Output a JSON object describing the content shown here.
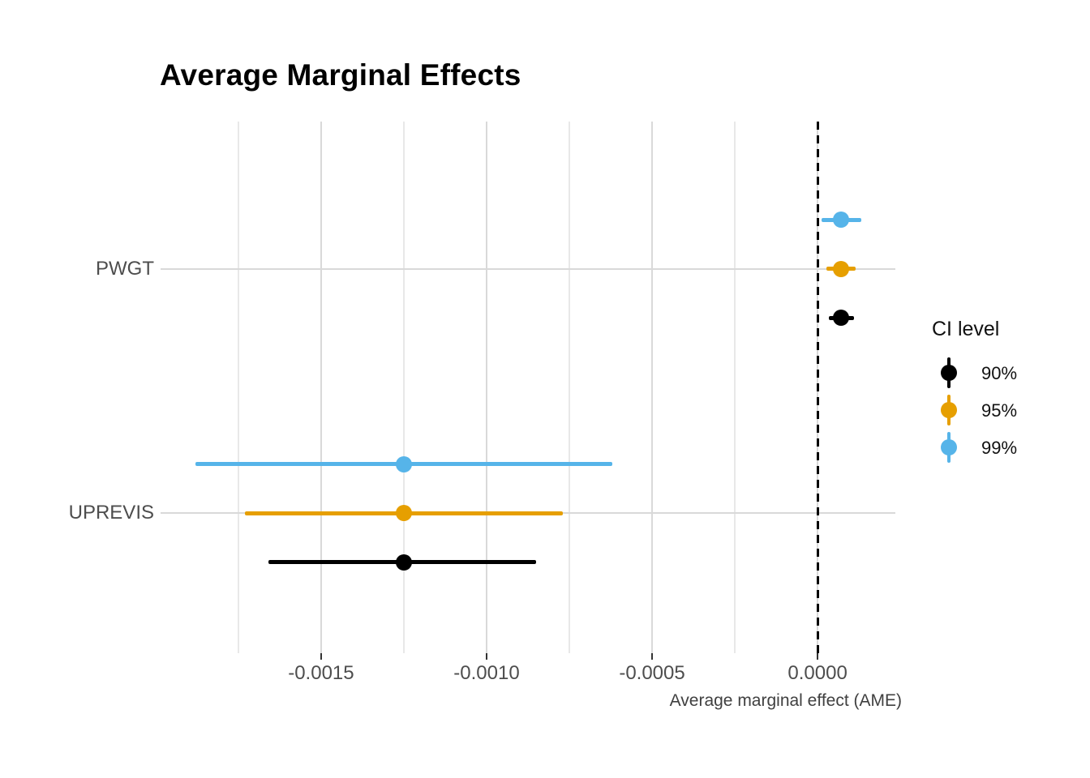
{
  "title": "Average Marginal Effects",
  "axes": {
    "x_title": "Average marginal effect (AME)",
    "x_tick_labels": [
      "-0.0015",
      "-0.0010",
      "-0.0005",
      "0.0000"
    ],
    "y_labels": [
      "PWGT",
      "UPREVIS"
    ]
  },
  "legend": {
    "title": "CI level",
    "items": [
      {
        "label": "90%",
        "color": "#000000"
      },
      {
        "label": "95%",
        "color": "#E69F00"
      },
      {
        "label": "99%",
        "color": "#56B4E9"
      }
    ]
  },
  "colors": {
    "background": "#FFFFFF",
    "grid_major": "#D9D9D9",
    "grid_minor": "#E8E8E8",
    "zero_line": "#000000",
    "tick_text": "#4D4D4D",
    "axis_title_text": "#404040"
  },
  "chart_data": {
    "type": "scatter",
    "subtype": "coefficient-pointrange (dot-and-whisker plot, horizontal CIs, dodged by CI level)",
    "title": "Average Marginal Effects",
    "xlabel": "Average marginal effect (AME)",
    "ylabel": "",
    "categories": [
      "PWGT",
      "UPREVIS"
    ],
    "x_ticks": [
      -0.0015,
      -0.001,
      -0.0005,
      0.0
    ],
    "x_minor_ticks": [
      -0.00175,
      -0.00125,
      -0.00075,
      -0.00025
    ],
    "xlim": [
      -0.001985,
      0.000235
    ],
    "zero_reference_line": 0.0,
    "grid": true,
    "legend_position": "right",
    "legend_title": "CI level",
    "series": [
      {
        "name": "90%",
        "color": "#000000",
        "points": [
          {
            "category": "PWGT",
            "estimate": 7.1e-05,
            "lower": 3.3e-05,
            "upper": 0.000109
          },
          {
            "category": "UPREVIS",
            "estimate": -0.00125,
            "lower": -0.00166,
            "upper": -0.00085
          }
        ]
      },
      {
        "name": "95%",
        "color": "#E69F00",
        "points": [
          {
            "category": "PWGT",
            "estimate": 7.1e-05,
            "lower": 2.6e-05,
            "upper": 0.000116
          },
          {
            "category": "UPREVIS",
            "estimate": -0.00125,
            "lower": -0.00173,
            "upper": -0.00077
          }
        ]
      },
      {
        "name": "99%",
        "color": "#56B4E9",
        "points": [
          {
            "category": "PWGT",
            "estimate": 7.1e-05,
            "lower": 1.2e-05,
            "upper": 0.000131
          },
          {
            "category": "UPREVIS",
            "estimate": -0.00125,
            "lower": -0.00188,
            "upper": -0.00062
          }
        ]
      }
    ]
  }
}
